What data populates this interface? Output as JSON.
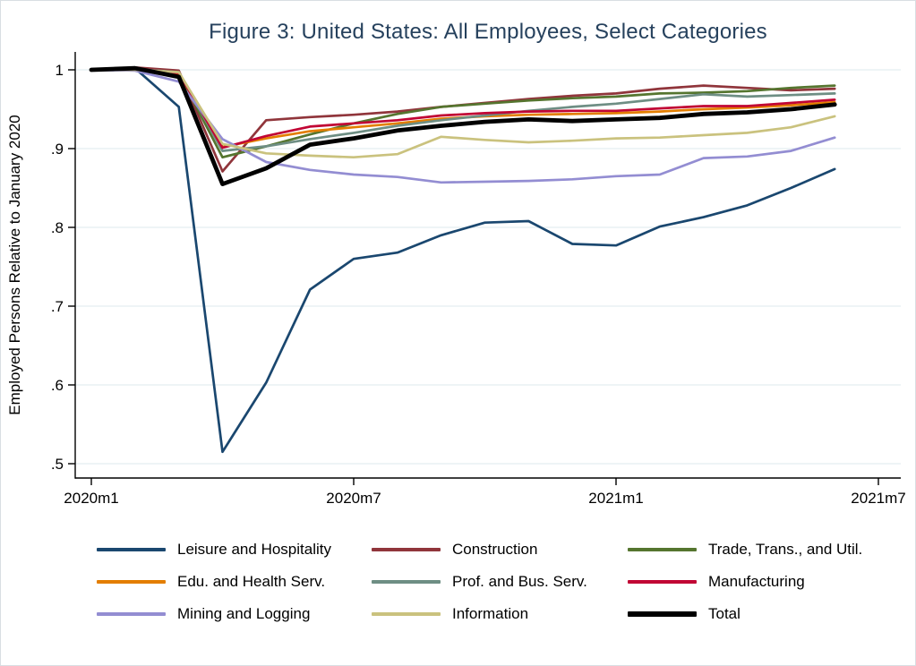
{
  "figure": {
    "title": "Figure 3: United States: All Employees, Select Categories",
    "title_color": "#26415d",
    "y_axis_label": "Employed Persons Relative to January 2020"
  },
  "chart_data": {
    "type": "line",
    "title": "Figure 3: United States: All Employees, Select Categories",
    "xlabel": "",
    "ylabel": "Employed Persons Relative to January 2020",
    "ylim": [
      0.5,
      1.0
    ],
    "grid": "horizontal",
    "gridline_color": "#e4eef0",
    "axis_color": "#000000",
    "legend_position": "below",
    "x": [
      "2020m1",
      "2020m2",
      "2020m3",
      "2020m4",
      "2020m5",
      "2020m6",
      "2020m7",
      "2020m8",
      "2020m9",
      "2020m10",
      "2020m11",
      "2020m12",
      "2021m1",
      "2021m2",
      "2021m3",
      "2021m4",
      "2021m5",
      "2021m6"
    ],
    "x_tick_labels": [
      "2020m1",
      "2020m7",
      "2021m1",
      "2021m7"
    ],
    "x_tick_month_index": [
      0,
      6,
      12,
      18
    ],
    "y_tick_labels": [
      "1",
      ".9",
      ".8",
      ".7",
      ".6",
      ".5"
    ],
    "y_tick_values": [
      1.0,
      0.9,
      0.8,
      0.7,
      0.6,
      0.5
    ],
    "series": [
      {
        "name": "Leisure and Hospitality",
        "color": "#1a476f",
        "width": 2.7,
        "values": [
          1.0,
          1.002,
          0.953,
          0.515,
          0.603,
          0.721,
          0.76,
          0.768,
          0.79,
          0.806,
          0.808,
          0.779,
          0.777,
          0.801,
          0.813,
          0.828,
          0.85,
          0.874
        ]
      },
      {
        "name": "Construction",
        "color": "#90353b",
        "width": 2.7,
        "values": [
          1.0,
          1.003,
          0.999,
          0.871,
          0.936,
          0.94,
          0.943,
          0.947,
          0.953,
          0.958,
          0.963,
          0.967,
          0.97,
          0.976,
          0.98,
          0.977,
          0.974,
          0.976
        ]
      },
      {
        "name": "Trade, Trans., and Util.",
        "color": "#55752f",
        "width": 2.7,
        "values": [
          1.0,
          1.001,
          0.996,
          0.889,
          0.903,
          0.918,
          0.932,
          0.944,
          0.953,
          0.957,
          0.961,
          0.964,
          0.966,
          0.97,
          0.971,
          0.973,
          0.977,
          0.98
        ]
      },
      {
        "name": "Edu. and Health Serv.",
        "color": "#e37e00",
        "width": 2.7,
        "values": [
          1.0,
          1.001,
          0.995,
          0.902,
          0.913,
          0.922,
          0.927,
          0.932,
          0.938,
          0.941,
          0.943,
          0.944,
          0.945,
          0.947,
          0.95,
          0.952,
          0.955,
          0.959
        ]
      },
      {
        "name": "Prof. and Bus. Serv.",
        "color": "#6e8e84",
        "width": 2.7,
        "values": [
          1.0,
          1.001,
          0.997,
          0.897,
          0.903,
          0.912,
          0.92,
          0.929,
          0.936,
          0.942,
          0.948,
          0.953,
          0.957,
          0.963,
          0.969,
          0.966,
          0.968,
          0.97
        ]
      },
      {
        "name": "Manufacturing",
        "color": "#c10534",
        "width": 2.7,
        "values": [
          1.0,
          1.001,
          0.996,
          0.901,
          0.916,
          0.928,
          0.932,
          0.936,
          0.942,
          0.945,
          0.947,
          0.948,
          0.948,
          0.951,
          0.954,
          0.954,
          0.958,
          0.962
        ]
      },
      {
        "name": "Mining and Logging",
        "color": "#938dd2",
        "width": 2.7,
        "values": [
          1.0,
          0.999,
          0.985,
          0.912,
          0.883,
          0.873,
          0.867,
          0.864,
          0.857,
          0.858,
          0.859,
          0.861,
          0.865,
          0.867,
          0.888,
          0.89,
          0.897,
          0.914
        ]
      },
      {
        "name": "Information",
        "color": "#cac27e",
        "width": 2.7,
        "values": [
          1.0,
          1.0,
          0.997,
          0.906,
          0.894,
          0.891,
          0.889,
          0.893,
          0.915,
          0.911,
          0.908,
          0.91,
          0.913,
          0.914,
          0.917,
          0.92,
          0.927,
          0.941
        ]
      },
      {
        "name": "Total",
        "color": "#000000",
        "width": 4.8,
        "values": [
          1.0,
          1.002,
          0.991,
          0.855,
          0.875,
          0.905,
          0.913,
          0.923,
          0.929,
          0.934,
          0.937,
          0.935,
          0.937,
          0.939,
          0.944,
          0.946,
          0.95,
          0.956
        ]
      }
    ]
  }
}
